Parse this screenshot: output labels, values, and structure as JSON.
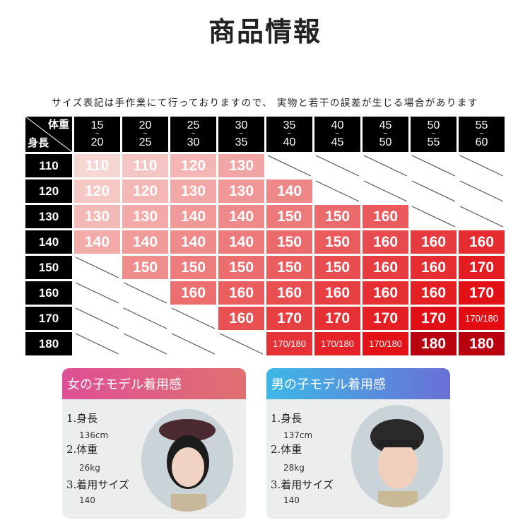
{
  "title": "商品情報",
  "note": "サイズ表記は手作業にて行っておりますので、 実物と若干の誤差が生じる場合があります",
  "table": {
    "corner_weight": "体重",
    "corner_height": "身長",
    "weight_ranges": [
      [
        "15",
        "20"
      ],
      [
        "20",
        "25"
      ],
      [
        "25",
        "30"
      ],
      [
        "30",
        "35"
      ],
      [
        "35",
        "40"
      ],
      [
        "40",
        "45"
      ],
      [
        "45",
        "50"
      ],
      [
        "50",
        "55"
      ],
      [
        "55",
        "60"
      ]
    ],
    "tilde": "~",
    "rows": [
      {
        "height": "110",
        "cells": [
          "110",
          "110",
          "120",
          "130",
          null,
          null,
          null,
          null,
          null
        ]
      },
      {
        "height": "120",
        "cells": [
          "120",
          "120",
          "130",
          "130",
          "140",
          null,
          null,
          null,
          null
        ]
      },
      {
        "height": "130",
        "cells": [
          "130",
          "130",
          "140",
          "140",
          "150",
          "150",
          "160",
          null,
          null
        ]
      },
      {
        "height": "140",
        "cells": [
          "140",
          "140",
          "140",
          "140",
          "150",
          "150",
          "160",
          "160",
          "160"
        ]
      },
      {
        "height": "150",
        "cells": [
          null,
          "150",
          "150",
          "150",
          "150",
          "150",
          "160",
          "160",
          "170"
        ]
      },
      {
        "height": "160",
        "cells": [
          null,
          null,
          "160",
          "160",
          "160",
          "160",
          "160",
          "160",
          "170"
        ]
      },
      {
        "height": "170",
        "cells": [
          null,
          null,
          null,
          "160",
          "170",
          "170",
          "170",
          "170",
          "170/180"
        ]
      },
      {
        "height": "180",
        "cells": [
          null,
          null,
          null,
          null,
          "170/180",
          "170/180",
          "170/180",
          "180",
          "180"
        ]
      }
    ]
  },
  "girl": {
    "header": "女の子モデル着用感",
    "l1": "1.身長",
    "v1": "136cm",
    "l2": "2.体重",
    "v2": "26kg",
    "l3": "3.着用サイズ",
    "v3": "140",
    "colors": [
      "#de4f95",
      "#e07070"
    ]
  },
  "boy": {
    "header": "男の子モデル着用感",
    "l1": "1.身長",
    "v1": "137cm",
    "l2": "2.体重",
    "v2": "28kg",
    "l3": "3.着用サイズ",
    "v3": "140",
    "colors": [
      "#3db8e6",
      "#6a70d6"
    ]
  }
}
